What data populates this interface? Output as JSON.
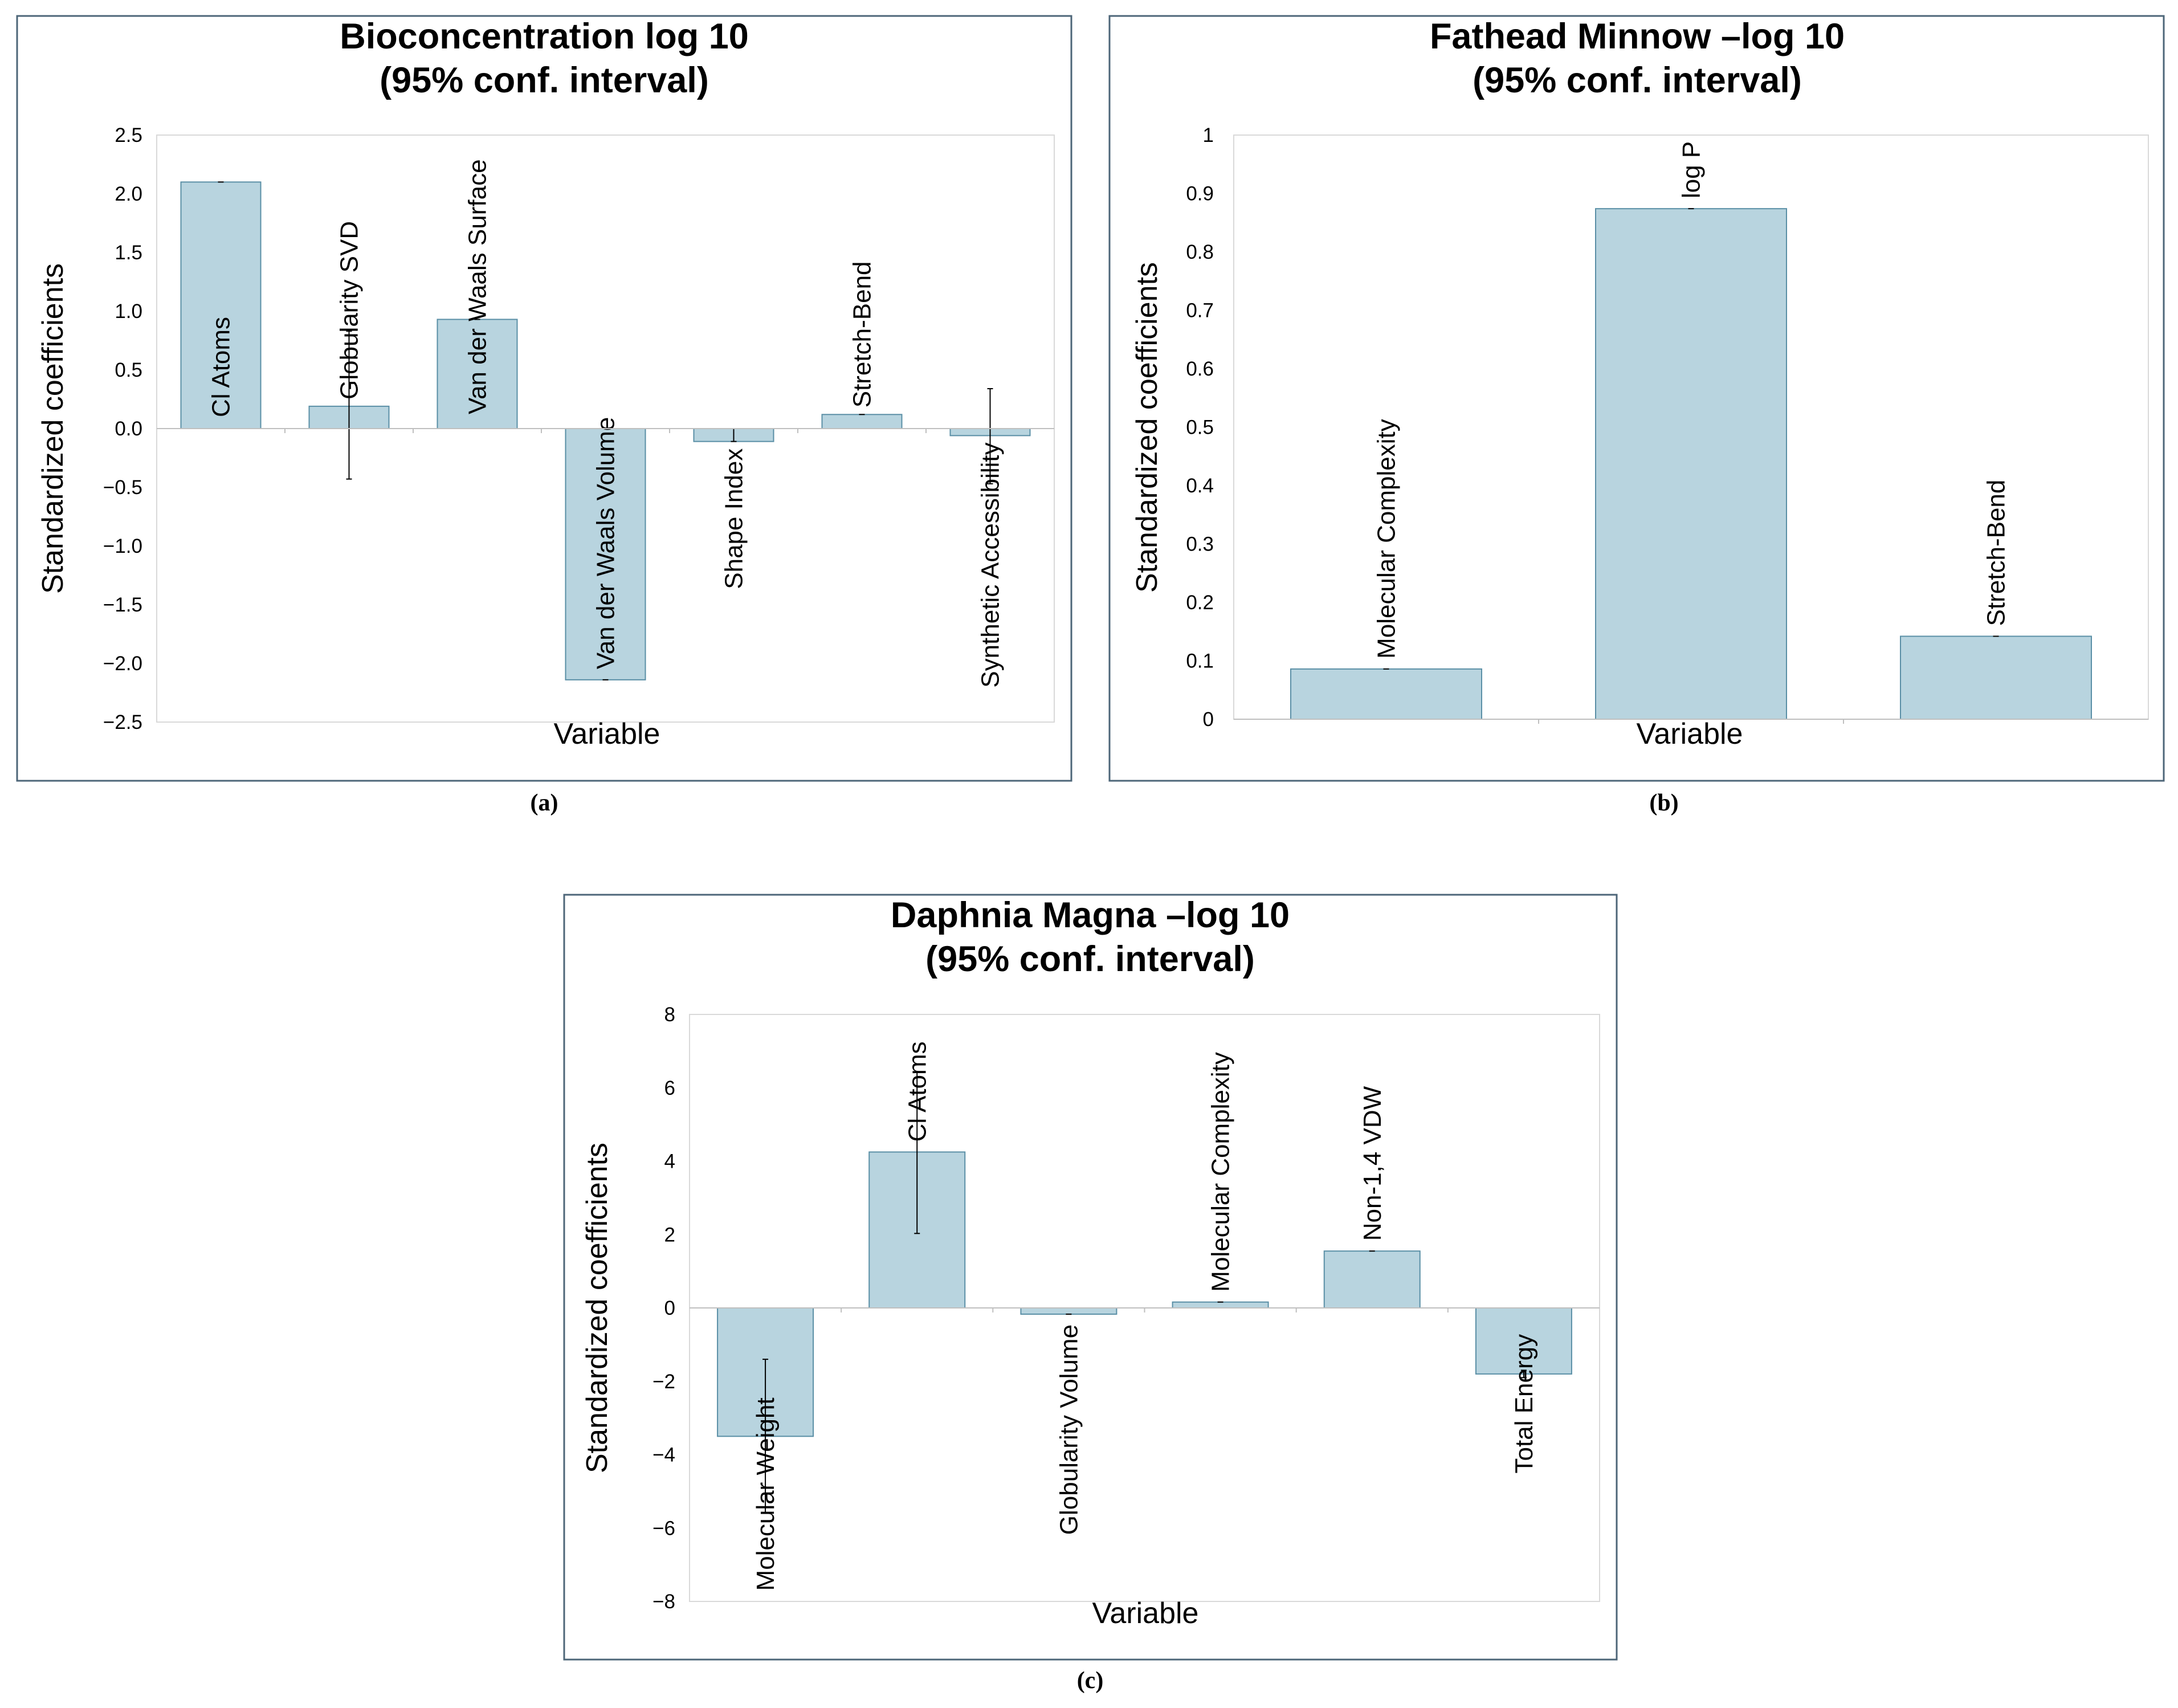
{
  "chart_data": [
    {
      "type": "bar",
      "panel": "(a)",
      "title_lines": [
        "Bioconcentration log 10",
        "(95% conf. interval)"
      ],
      "xlabel": "Variable",
      "ylabel": "Standardized coefficients",
      "ylim": [
        -2.5,
        2.5
      ],
      "yticks": [
        2.5,
        2.0,
        1.5,
        1.0,
        0.5,
        0.0,
        -0.5,
        -1.0,
        -1.5,
        -2.0,
        -2.5
      ],
      "ytick_labels": [
        "2.5",
        "2.0",
        "1.5",
        "1.0",
        "0.5",
        "0.0",
        "−0.5",
        "−1.0",
        "−1.5",
        "−2.0",
        "−2.5"
      ],
      "categories": [
        "Cl Atoms",
        "Globularity SVD",
        "Van der Waals Surface",
        "Van der Waals Volume",
        "Shape Index",
        "Stretch-Bend",
        "Synthetic Accessibility"
      ],
      "values": [
        2.1,
        0.19,
        0.93,
        -2.14,
        -0.11,
        0.12,
        -0.06
      ],
      "error_bars": [
        [
          2.1,
          2.1
        ],
        [
          -0.43,
          0.83
        ],
        [
          0.93,
          0.93
        ],
        [
          -2.14,
          -2.14
        ],
        [
          -0.11,
          0.0
        ],
        [
          0.12,
          0.12
        ],
        [
          -0.47,
          0.34
        ]
      ],
      "grid": false
    },
    {
      "type": "bar",
      "panel": "(b)",
      "title_lines": [
        "Fathead Minnow –log 10",
        "(95% conf. interval)"
      ],
      "xlabel": "Variable",
      "ylabel": "Standardized coefficients",
      "ylim": [
        0,
        1
      ],
      "yticks": [
        1,
        0.9,
        0.8,
        0.7,
        0.6,
        0.5,
        0.4,
        0.3,
        0.2,
        0.1,
        0
      ],
      "ytick_labels": [
        "1",
        "0.9",
        "0.8",
        "0.7",
        "0.6",
        "0.5",
        "0.4",
        "0.3",
        "0.2",
        "0.1",
        "0"
      ],
      "categories": [
        "Molecular Complexity",
        "log P",
        "Stretch-Bend"
      ],
      "values": [
        0.086,
        0.874,
        0.142
      ],
      "error_bars": [
        [
          0.086,
          0.086
        ],
        [
          0.874,
          0.874
        ],
        [
          0.142,
          0.142
        ]
      ],
      "grid": false
    },
    {
      "type": "bar",
      "panel": "(c)",
      "title_lines": [
        "Daphnia Magna –log 10",
        "(95% conf. interval)"
      ],
      "xlabel": "Variable",
      "ylabel": "Standardized coefficients",
      "ylim": [
        -8,
        8
      ],
      "yticks": [
        8,
        6,
        4,
        2,
        0,
        -2,
        -4,
        -6,
        -8
      ],
      "ytick_labels": [
        "8",
        "6",
        "4",
        "2",
        "0",
        "−2",
        "−4",
        "−6",
        "−8"
      ],
      "categories": [
        "Molecular Weight",
        "Cl Atoms",
        "Globularity Volume",
        "Molecular Complexity",
        "Non-1,4 VDW",
        "Total Energy"
      ],
      "values": [
        -3.5,
        4.25,
        -0.17,
        0.16,
        1.55,
        -1.8
      ],
      "error_bars": [
        [
          -5.6,
          -1.4
        ],
        [
          2.03,
          6.43
        ],
        [
          -0.17,
          -0.17
        ],
        [
          0.16,
          0.16
        ],
        [
          1.55,
          1.55
        ],
        [
          -1.9,
          -1.7
        ]
      ],
      "grid": false
    }
  ],
  "colors": {
    "bar_fill": "#b8d4df",
    "bar_stroke": "#5a8fa6",
    "frame": "#4d6678",
    "plot_border": "#d9d9d9",
    "text": "#000000"
  }
}
